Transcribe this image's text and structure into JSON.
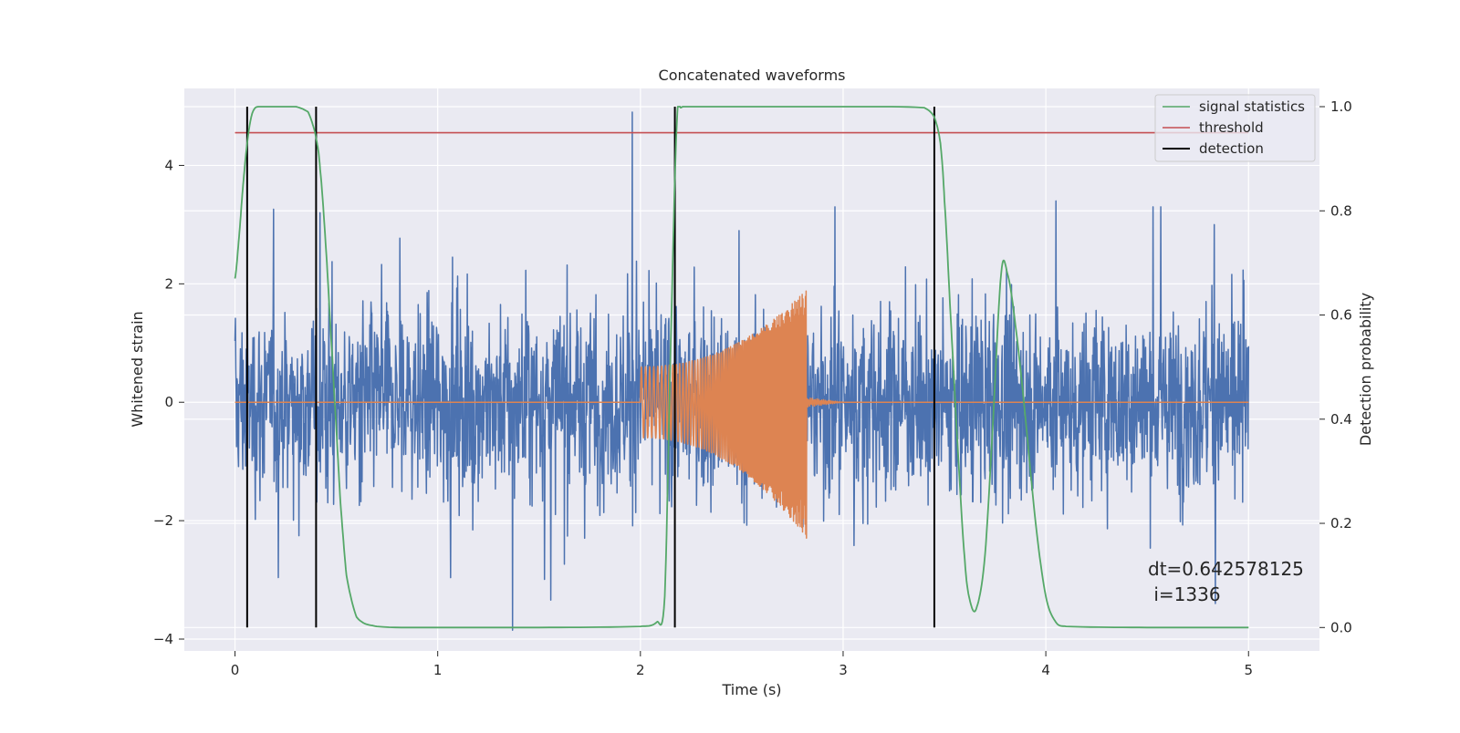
{
  "chart_data": {
    "type": "line",
    "title": "Concatenated waveforms",
    "xlabel": "Time (s)",
    "ylabel_left": "Whitened strain",
    "ylabel_right": "Detection probability",
    "xlim": [
      -0.25,
      5.35
    ],
    "ylim_left": [
      -4.2,
      5.3
    ],
    "ylim_right": [
      -0.045,
      1.035
    ],
    "xticks": [
      0,
      1,
      2,
      3,
      4,
      5
    ],
    "xtick_labels": [
      "0",
      "1",
      "2",
      "3",
      "4",
      "5"
    ],
    "yticks_left": [
      -4,
      -2,
      0,
      2,
      4
    ],
    "ytick_labels_left": [
      "−4",
      "−2",
      "0",
      "2",
      "4"
    ],
    "yticks_right": [
      0.0,
      0.2,
      0.4,
      0.6,
      0.8,
      1.0
    ],
    "ytick_labels_right": [
      "0.0",
      "0.2",
      "0.4",
      "0.6",
      "0.8",
      "1.0"
    ],
    "grid": true,
    "legend_position": "top-right",
    "series": [
      {
        "kind": "strain_noise",
        "color": "#4c72b0",
        "x_range": [
          0,
          5
        ],
        "amplitude": 1.1,
        "spikes": [
          {
            "x": 1.96,
            "y": 4.9
          },
          {
            "x": 1.37,
            "y": -3.85
          },
          {
            "x": 4.05,
            "y": 3.4
          },
          {
            "x": 2.17,
            "y": 3.6
          },
          {
            "x": 0.42,
            "y": 3.2
          },
          {
            "x": 4.83,
            "y": 3.0
          }
        ]
      },
      {
        "kind": "injected_chirp",
        "color": "#dd8452",
        "x_range": [
          0,
          5
        ],
        "chirp_start": 2.0,
        "chirp_end": 2.82,
        "envelope_start": [
          0.6,
          -0.6
        ],
        "envelope_end": [
          1.9,
          -2.3
        ],
        "ringdown_end": 3.0
      },
      {
        "name": "signal statistics",
        "color": "#55a868",
        "axis": "right",
        "x": [
          0.0,
          0.02,
          0.04,
          0.06,
          0.08,
          0.1,
          0.14,
          0.3,
          0.36,
          0.38,
          0.4,
          0.42,
          0.45,
          0.48,
          0.5,
          0.52,
          0.55,
          0.6,
          0.7,
          1.0,
          1.5,
          2.0,
          2.08,
          2.12,
          2.15,
          2.18,
          2.2,
          2.25,
          3.0,
          3.4,
          3.45,
          3.48,
          3.5,
          3.53,
          3.56,
          3.6,
          3.63,
          3.66,
          3.7,
          3.74,
          3.78,
          3.81,
          3.85,
          3.9,
          3.95,
          4.0,
          4.05,
          4.1,
          4.5,
          5.0
        ],
        "y": [
          0.67,
          0.75,
          0.85,
          0.93,
          0.98,
          0.998,
          1.0,
          1.0,
          0.99,
          0.97,
          0.94,
          0.88,
          0.72,
          0.52,
          0.38,
          0.24,
          0.1,
          0.02,
          0.002,
          0.0,
          0.0,
          0.002,
          0.01,
          0.06,
          0.55,
          0.97,
          0.998,
          1.0,
          1.0,
          0.998,
          0.98,
          0.93,
          0.82,
          0.6,
          0.38,
          0.13,
          0.045,
          0.04,
          0.14,
          0.4,
          0.68,
          0.68,
          0.58,
          0.4,
          0.2,
          0.06,
          0.01,
          0.002,
          0.0,
          0.0
        ]
      },
      {
        "name": "threshold",
        "color": "#c44e52",
        "axis": "right",
        "x": [
          0,
          5
        ],
        "y": [
          0.95,
          0.95
        ]
      }
    ],
    "detections": {
      "name": "detection",
      "color": "#000000",
      "x": [
        0.06,
        0.4,
        2.17,
        3.45
      ],
      "y_range": [
        0.0,
        1.0
      ]
    },
    "legend": [
      "signal statistics",
      "threshold",
      "detection"
    ],
    "annotation": {
      "line1": "dt=0.642578125",
      "line2": " i=1336"
    }
  }
}
